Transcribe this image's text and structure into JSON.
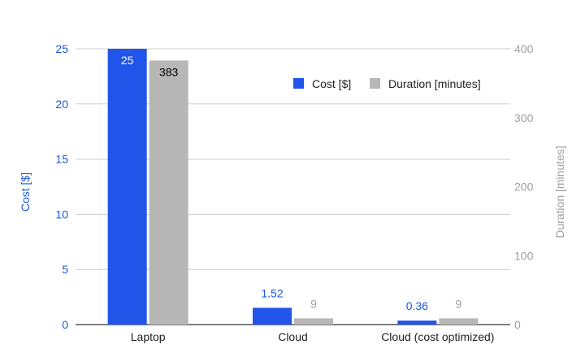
{
  "chart_data": {
    "type": "bar",
    "categories": [
      "Laptop",
      "Cloud",
      "Cloud (cost optimized)"
    ],
    "series": [
      {
        "name": "Cost [$]",
        "axis": "left",
        "color": "#2154e8",
        "values": [
          25,
          1.52,
          0.36
        ],
        "labels": [
          "25",
          "1.52",
          "0.36"
        ]
      },
      {
        "name": "Duration [minutes]",
        "axis": "right",
        "color": "#b7b7b7",
        "values": [
          383,
          9,
          9
        ],
        "labels": [
          "383",
          "9",
          "9"
        ]
      }
    ],
    "y_left": {
      "label": "Cost [$]",
      "range": [
        0,
        25
      ],
      "ticks": [
        "0",
        "5",
        "10",
        "15",
        "20",
        "25"
      ]
    },
    "y_right": {
      "label": "Duration [minutes]",
      "range": [
        0,
        400
      ],
      "ticks": [
        "0",
        "100",
        "200",
        "300",
        "400"
      ]
    },
    "grid": true,
    "legend_position": "top-right",
    "colors": {
      "left_axis_text": "#1a56d6",
      "right_axis_text": "#9e9e9e",
      "grid": "#cccccc"
    }
  }
}
